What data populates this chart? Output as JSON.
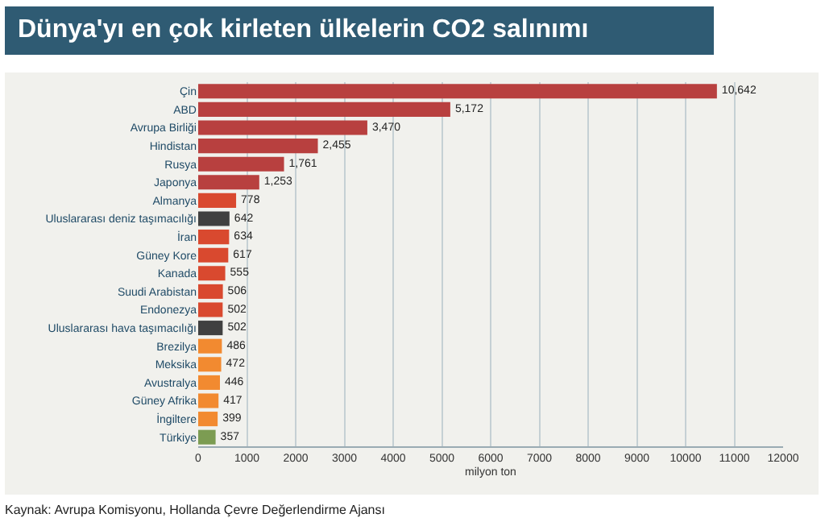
{
  "chart_data": {
    "type": "bar",
    "orientation": "horizontal",
    "title": "Dünya'yı en çok kirleten ülkelerin CO2 salınımı",
    "xlabel": "milyon ton",
    "categories": [
      "Çin",
      "ABD",
      "Avrupa Birliği",
      "Hindistan",
      "Rusya",
      "Japonya",
      "Almanya",
      "Uluslararası deniz taşımacılığı",
      "İran",
      "Güney Kore",
      "Kanada",
      "Suudi Arabistan",
      "Endonezya",
      "Uluslararası hava taşımacılığı",
      "Brezilya",
      "Meksika",
      "Avustralya",
      "Güney Afrika",
      "İngiltere",
      "Türkiye"
    ],
    "values": [
      10642,
      5172,
      3470,
      2455,
      1761,
      1253,
      778,
      642,
      634,
      617,
      555,
      506,
      502,
      502,
      486,
      472,
      446,
      417,
      399,
      357
    ],
    "value_labels": [
      "10,642",
      "5,172",
      "3,470",
      "2,455",
      "1,761",
      "1,253",
      "778",
      "642",
      "634",
      "617",
      "555",
      "506",
      "502",
      "502",
      "486",
      "472",
      "446",
      "417",
      "399",
      "357"
    ],
    "colors": [
      "#b8403f",
      "#b8403f",
      "#b8403f",
      "#b8403f",
      "#b8403f",
      "#b8403f",
      "#d9492f",
      "#404040",
      "#d9492f",
      "#d9492f",
      "#d9492f",
      "#d9492f",
      "#d9492f",
      "#404040",
      "#f28a30",
      "#f28a30",
      "#f28a30",
      "#f28a30",
      "#f28a30",
      "#7c9c52"
    ],
    "xlim": [
      0,
      12000
    ],
    "xticks": [
      0,
      1000,
      2000,
      3000,
      4000,
      5000,
      6000,
      7000,
      8000,
      9000,
      10000,
      11000,
      12000
    ],
    "grid": "x",
    "annotations": [
      "Kaynak: Avrupa Komisyonu, Hollanda Çevre Değerlendirme Ajansı"
    ]
  }
}
